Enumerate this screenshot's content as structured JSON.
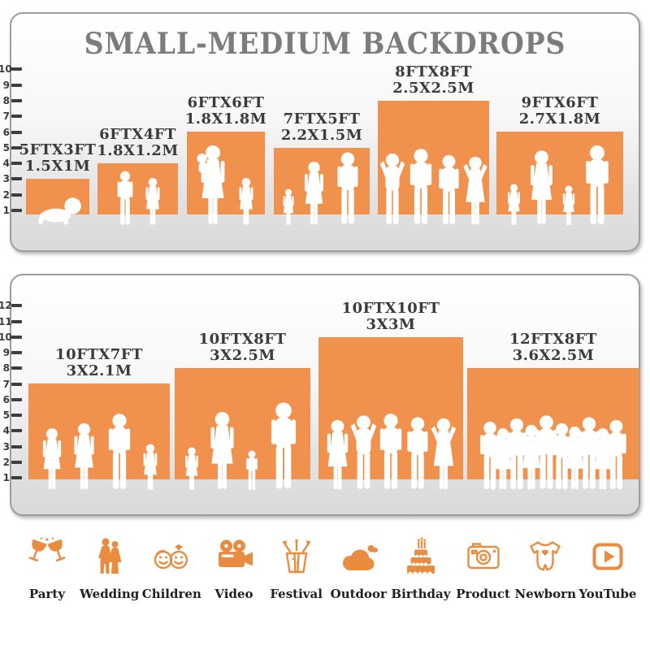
{
  "title": "SMALL-MEDIUM BACKDROPS",
  "colors": {
    "bar_orange": "#F0924E",
    "icon_orange": "#EA8C3F",
    "title_gray": "#7C7C7C",
    "label_dark": "#3B3B3B",
    "panel_border": "#9E9E9E",
    "silhouette_white": "#FFFFFF"
  },
  "chart_data": [
    {
      "type": "bar",
      "panel": "top",
      "title": "SMALL-MEDIUM BACKDROPS",
      "ruler_ticks": [
        1,
        2,
        3,
        4,
        5,
        6,
        7,
        8,
        9,
        10
      ],
      "units": "FT",
      "bars": [
        {
          "size_ft": "5FTX3FT",
          "size_m": "1.5X1M",
          "width_ft": 5,
          "height_ft": 3,
          "figures": [
            {
              "type": "baby",
              "h": 40
            }
          ]
        },
        {
          "size_ft": "6FTX4FT",
          "size_m": "1.8X1.2M",
          "width_ft": 6,
          "height_ft": 4,
          "figures": [
            {
              "type": "boy",
              "h": 68
            },
            {
              "type": "girl",
              "h": 60
            }
          ]
        },
        {
          "size_ft": "6FTX6FT",
          "size_m": "1.8X1.8M",
          "width_ft": 6,
          "height_ft": 6,
          "figures": [
            {
              "type": "woman-baby",
              "h": 100
            },
            {
              "type": "girl",
              "h": 60
            }
          ]
        },
        {
          "size_ft": "7FTX5FT",
          "size_m": "2.2X1.5M",
          "width_ft": 7,
          "height_ft": 5,
          "figures": [
            {
              "type": "girl",
              "h": 46
            },
            {
              "type": "woman",
              "h": 80
            },
            {
              "type": "man",
              "h": 92
            }
          ]
        },
        {
          "size_ft": "8FTX8FT",
          "size_m": "2.5X2.5M",
          "width_ft": 8,
          "height_ft": 8,
          "figures": [
            {
              "type": "man-armsup",
              "h": 90
            },
            {
              "type": "man",
              "h": 96
            },
            {
              "type": "man",
              "h": 88
            },
            {
              "type": "woman-armsup",
              "h": 86
            }
          ]
        },
        {
          "size_ft": "9FTX6FT",
          "size_m": "2.7X1.8M",
          "width_ft": 9,
          "height_ft": 6,
          "figures": [
            {
              "type": "girl",
              "h": 52
            },
            {
              "type": "woman",
              "h": 94
            },
            {
              "type": "girl",
              "h": 50
            },
            {
              "type": "man",
              "h": 100
            }
          ]
        }
      ]
    },
    {
      "type": "bar",
      "panel": "bottom",
      "title": "",
      "ruler_ticks": [
        1,
        2,
        3,
        4,
        5,
        6,
        7,
        8,
        9,
        10,
        11,
        12
      ],
      "units": "FT",
      "bars": [
        {
          "size_ft": "10FTX7FT",
          "size_m": "3X2.1M",
          "width_ft": 10,
          "height_ft": 7,
          "figures": [
            {
              "type": "woman",
              "h": 78
            },
            {
              "type": "woman",
              "h": 84
            },
            {
              "type": "man",
              "h": 96
            },
            {
              "type": "girl",
              "h": 58
            }
          ]
        },
        {
          "size_ft": "10FTX8FT",
          "size_m": "3X2.5M",
          "width_ft": 10,
          "height_ft": 8,
          "figures": [
            {
              "type": "girl",
              "h": 54
            },
            {
              "type": "woman",
              "h": 98
            },
            {
              "type": "boy",
              "h": 50
            },
            {
              "type": "man",
              "h": 110
            }
          ]
        },
        {
          "size_ft": "10FTX10FT",
          "size_m": "3X3M",
          "width_ft": 10,
          "height_ft": 10,
          "figures": [
            {
              "type": "woman",
              "h": 88
            },
            {
              "type": "man-armsup",
              "h": 94
            },
            {
              "type": "man",
              "h": 96
            },
            {
              "type": "man",
              "h": 92
            },
            {
              "type": "woman-armsup",
              "h": 90
            }
          ]
        },
        {
          "size_ft": "12FTX8FT",
          "size_m": "3.6X2.5M",
          "width_ft": 12,
          "height_ft": 8,
          "figures": [
            {
              "type": "man",
              "h": 86
            },
            {
              "type": "woman",
              "h": 78
            },
            {
              "type": "man",
              "h": 90
            },
            {
              "type": "woman",
              "h": 82
            },
            {
              "type": "man",
              "h": 94
            },
            {
              "type": "man",
              "h": 84
            },
            {
              "type": "woman",
              "h": 80
            },
            {
              "type": "man",
              "h": 92
            },
            {
              "type": "woman",
              "h": 78
            },
            {
              "type": "man",
              "h": 88
            }
          ]
        }
      ]
    }
  ],
  "categories": [
    {
      "label": "Party",
      "icon": "party-icon"
    },
    {
      "label": "Wedding",
      "icon": "wedding-icon"
    },
    {
      "label": "Children",
      "icon": "children-icon"
    },
    {
      "label": "Video",
      "icon": "video-icon"
    },
    {
      "label": "Festival",
      "icon": "festival-icon"
    },
    {
      "label": "Outdoor",
      "icon": "outdoor-icon"
    },
    {
      "label": "Birthday",
      "icon": "birthday-icon"
    },
    {
      "label": "Product",
      "icon": "product-icon"
    },
    {
      "label": "Newborn",
      "icon": "newborn-icon"
    },
    {
      "label": "YouTube",
      "icon": "youtube-icon"
    }
  ]
}
